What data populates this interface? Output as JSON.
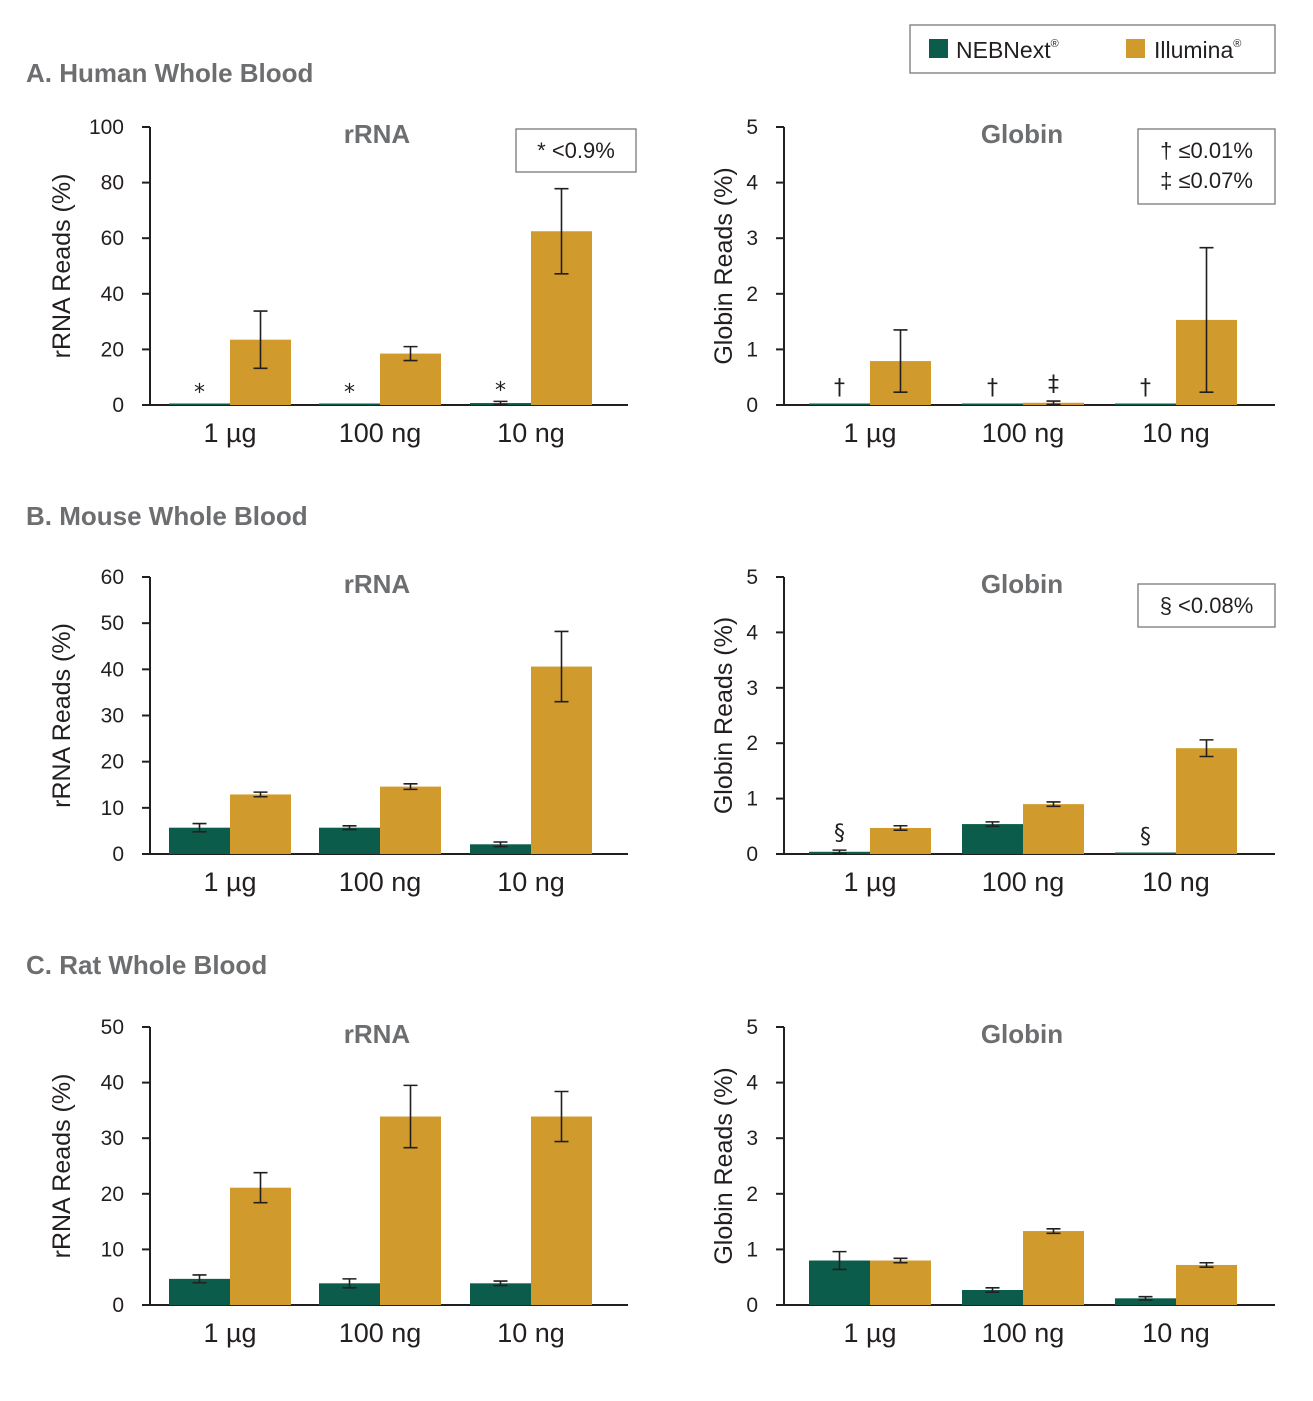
{
  "legend": {
    "items": [
      {
        "label": "NEBNext",
        "sup": "®",
        "color": "#0b5c4a"
      },
      {
        "label": "Illumina",
        "sup": "®",
        "color": "#d09b2c"
      }
    ]
  },
  "sections": [
    {
      "title": "A. Human Whole Blood"
    },
    {
      "title": "B. Mouse Whole Blood"
    },
    {
      "title": "C. Rat Whole Blood"
    }
  ],
  "chart_data": [
    {
      "type": "bar",
      "section": "A. Human Whole Blood",
      "title": "rRNA",
      "ylabel": "rRNA Reads (%)",
      "ylim": [
        0,
        100
      ],
      "yticks": [
        0,
        20,
        40,
        60,
        80,
        100
      ],
      "categories": [
        "1 µg",
        "100 ng",
        "10 ng"
      ],
      "series": [
        {
          "name": "NEBNext",
          "values": [
            0.5,
            0.5,
            0.7
          ],
          "errors": [
            0,
            0,
            0.6
          ],
          "markers": [
            "*",
            "*",
            "*"
          ]
        },
        {
          "name": "Illumina",
          "values": [
            23.5,
            18.5,
            62.5
          ],
          "errors": [
            10.3,
            2.5,
            15.3
          ],
          "markers": [
            "",
            "",
            ""
          ]
        }
      ],
      "notes": [
        "* <0.9%"
      ]
    },
    {
      "type": "bar",
      "section": "A. Human Whole Blood",
      "title": "Globin",
      "ylabel": "Globin Reads (%)",
      "ylim": [
        0,
        5
      ],
      "yticks": [
        0,
        1,
        2,
        3,
        4,
        5
      ],
      "categories": [
        "1 µg",
        "100 ng",
        "10 ng"
      ],
      "series": [
        {
          "name": "NEBNext",
          "values": [
            0.01,
            0.01,
            0.01
          ],
          "errors": [
            0,
            0,
            0
          ],
          "markers": [
            "†",
            "†",
            "†"
          ]
        },
        {
          "name": "Illumina",
          "values": [
            0.79,
            0.04,
            1.53
          ],
          "errors": [
            0.56,
            0.03,
            1.3
          ],
          "markers": [
            "",
            "‡",
            ""
          ]
        }
      ],
      "notes": [
        "† ≤0.01%",
        "‡ ≤0.07%"
      ]
    },
    {
      "type": "bar",
      "section": "B. Mouse Whole Blood",
      "title": "rRNA",
      "ylabel": "rRNA Reads (%)",
      "ylim": [
        0,
        60
      ],
      "yticks": [
        0,
        10,
        20,
        30,
        40,
        50,
        60
      ],
      "categories": [
        "1 µg",
        "100 ng",
        "10 ng"
      ],
      "series": [
        {
          "name": "NEBNext",
          "values": [
            5.7,
            5.7,
            2.1
          ],
          "errors": [
            0.9,
            0.4,
            0.5
          ],
          "markers": [
            "",
            "",
            ""
          ]
        },
        {
          "name": "Illumina",
          "values": [
            12.9,
            14.6,
            40.6
          ],
          "errors": [
            0.5,
            0.6,
            7.6
          ],
          "markers": [
            "",
            "",
            ""
          ]
        }
      ],
      "notes": []
    },
    {
      "type": "bar",
      "section": "B. Mouse Whole Blood",
      "title": "Globin",
      "ylabel": "Globin Reads (%)",
      "ylim": [
        0,
        5
      ],
      "yticks": [
        0,
        1,
        2,
        3,
        4,
        5
      ],
      "categories": [
        "1 µg",
        "100 ng",
        "10 ng"
      ],
      "series": [
        {
          "name": "NEBNext",
          "values": [
            0.04,
            0.54,
            0.01
          ],
          "errors": [
            0.03,
            0.04,
            0
          ],
          "markers": [
            "§",
            "",
            "§"
          ]
        },
        {
          "name": "Illumina",
          "values": [
            0.47,
            0.9,
            1.91
          ],
          "errors": [
            0.04,
            0.04,
            0.15
          ],
          "markers": [
            "",
            "",
            ""
          ]
        }
      ],
      "notes": [
        "§ <0.08%"
      ]
    },
    {
      "type": "bar",
      "section": "C. Rat Whole Blood",
      "title": "rRNA",
      "ylabel": "rRNA Reads (%)",
      "ylim": [
        0,
        50
      ],
      "yticks": [
        0,
        10,
        20,
        30,
        40,
        50
      ],
      "categories": [
        "1 µg",
        "100 ng",
        "10 ng"
      ],
      "series": [
        {
          "name": "NEBNext",
          "values": [
            4.7,
            3.9,
            3.9
          ],
          "errors": [
            0.7,
            0.8,
            0.4
          ],
          "markers": [
            "",
            "",
            ""
          ]
        },
        {
          "name": "Illumina",
          "values": [
            21.1,
            33.9,
            33.9
          ],
          "errors": [
            2.7,
            5.6,
            4.5
          ],
          "markers": [
            "",
            "",
            ""
          ]
        }
      ],
      "notes": []
    },
    {
      "type": "bar",
      "section": "C. Rat Whole Blood",
      "title": "Globin",
      "ylabel": "Globin Reads (%)",
      "ylim": [
        0,
        5
      ],
      "yticks": [
        0,
        1,
        2,
        3,
        4,
        5
      ],
      "categories": [
        "1 µg",
        "100 ng",
        "10 ng"
      ],
      "series": [
        {
          "name": "NEBNext",
          "values": [
            0.8,
            0.27,
            0.12
          ],
          "errors": [
            0.16,
            0.04,
            0.03
          ],
          "markers": [
            "",
            "",
            ""
          ]
        },
        {
          "name": "Illumina",
          "values": [
            0.8,
            1.33,
            0.72
          ],
          "errors": [
            0.04,
            0.04,
            0.04
          ],
          "markers": [
            "",
            "",
            ""
          ]
        }
      ],
      "notes": []
    }
  ]
}
